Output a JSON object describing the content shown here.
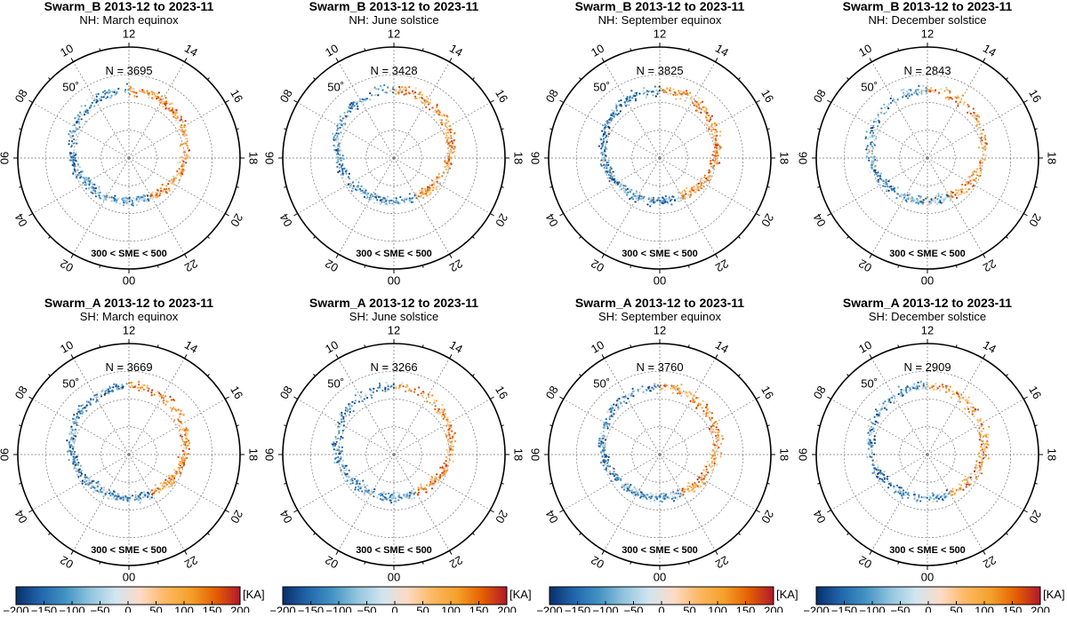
{
  "figure": {
    "type": "polar-scatter",
    "colorbar": {
      "unit_label": "[KA]",
      "min": -200,
      "max": 200,
      "tick_labels": [
        "−200",
        "−150",
        "−100",
        "−50",
        "0",
        "50",
        "100",
        "150",
        "200"
      ],
      "tick_values": [
        -200,
        -150,
        -100,
        -50,
        0,
        50,
        100,
        150,
        200
      ],
      "colors": [
        "#08306b",
        "#2166ac",
        "#4393c3",
        "#92c5de",
        "#d1e5f0",
        "#fddbc7",
        "#fdb863",
        "#f4a12b",
        "#e66101",
        "#b2182b"
      ]
    },
    "dial": {
      "mlt_labels": [
        "12",
        "10",
        "08",
        "06",
        "04",
        "02",
        "00",
        "22",
        "20",
        "18",
        "16",
        "14"
      ],
      "lat_ring_label": "50˚",
      "lat_rings_deg": [
        50,
        60,
        70,
        80
      ],
      "condition_label": "300 < SME < 500"
    }
  },
  "chart_data": [
    {
      "type": "scatter",
      "title": "Swarm_B 2013-12 to 2023-11",
      "subtitle": "NH: March equinox",
      "n_label": "N = 3695",
      "n": 3695,
      "hemisphere": "NH",
      "season": "March equinox"
    },
    {
      "type": "scatter",
      "title": "Swarm_B 2013-12 to 2023-11",
      "subtitle": "NH: June solstice",
      "n_label": "N = 3428",
      "n": 3428,
      "hemisphere": "NH",
      "season": "June solstice"
    },
    {
      "type": "scatter",
      "title": "Swarm_B 2013-12 to 2023-11",
      "subtitle": "NH: September equinox",
      "n_label": "N = 3825",
      "n": 3825,
      "hemisphere": "NH",
      "season": "September equinox"
    },
    {
      "type": "scatter",
      "title": "Swarm_B 2013-12 to 2023-11",
      "subtitle": "NH: December solstice",
      "n_label": "N = 2843",
      "n": 2843,
      "hemisphere": "NH",
      "season": "December solstice"
    },
    {
      "type": "scatter",
      "title": "Swarm_A 2013-12 to 2023-11",
      "subtitle": "SH: March equinox",
      "n_label": "N = 3669",
      "n": 3669,
      "hemisphere": "SH",
      "season": "March equinox"
    },
    {
      "type": "scatter",
      "title": "Swarm_A 2013-12 to 2023-11",
      "subtitle": "SH: June solstice",
      "n_label": "N = 3266",
      "n": 3266,
      "hemisphere": "SH",
      "season": "June solstice"
    },
    {
      "type": "scatter",
      "title": "Swarm_A 2013-12 to 2023-11",
      "subtitle": "SH: September equinox",
      "n_label": "N = 3760",
      "n": 3760,
      "hemisphere": "SH",
      "season": "September equinox"
    },
    {
      "type": "scatter",
      "title": "Swarm_A 2013-12 to 2023-11",
      "subtitle": "SH: December solstice",
      "n_label": "N = 2909",
      "n": 2909,
      "hemisphere": "SH",
      "season": "December solstice"
    }
  ]
}
